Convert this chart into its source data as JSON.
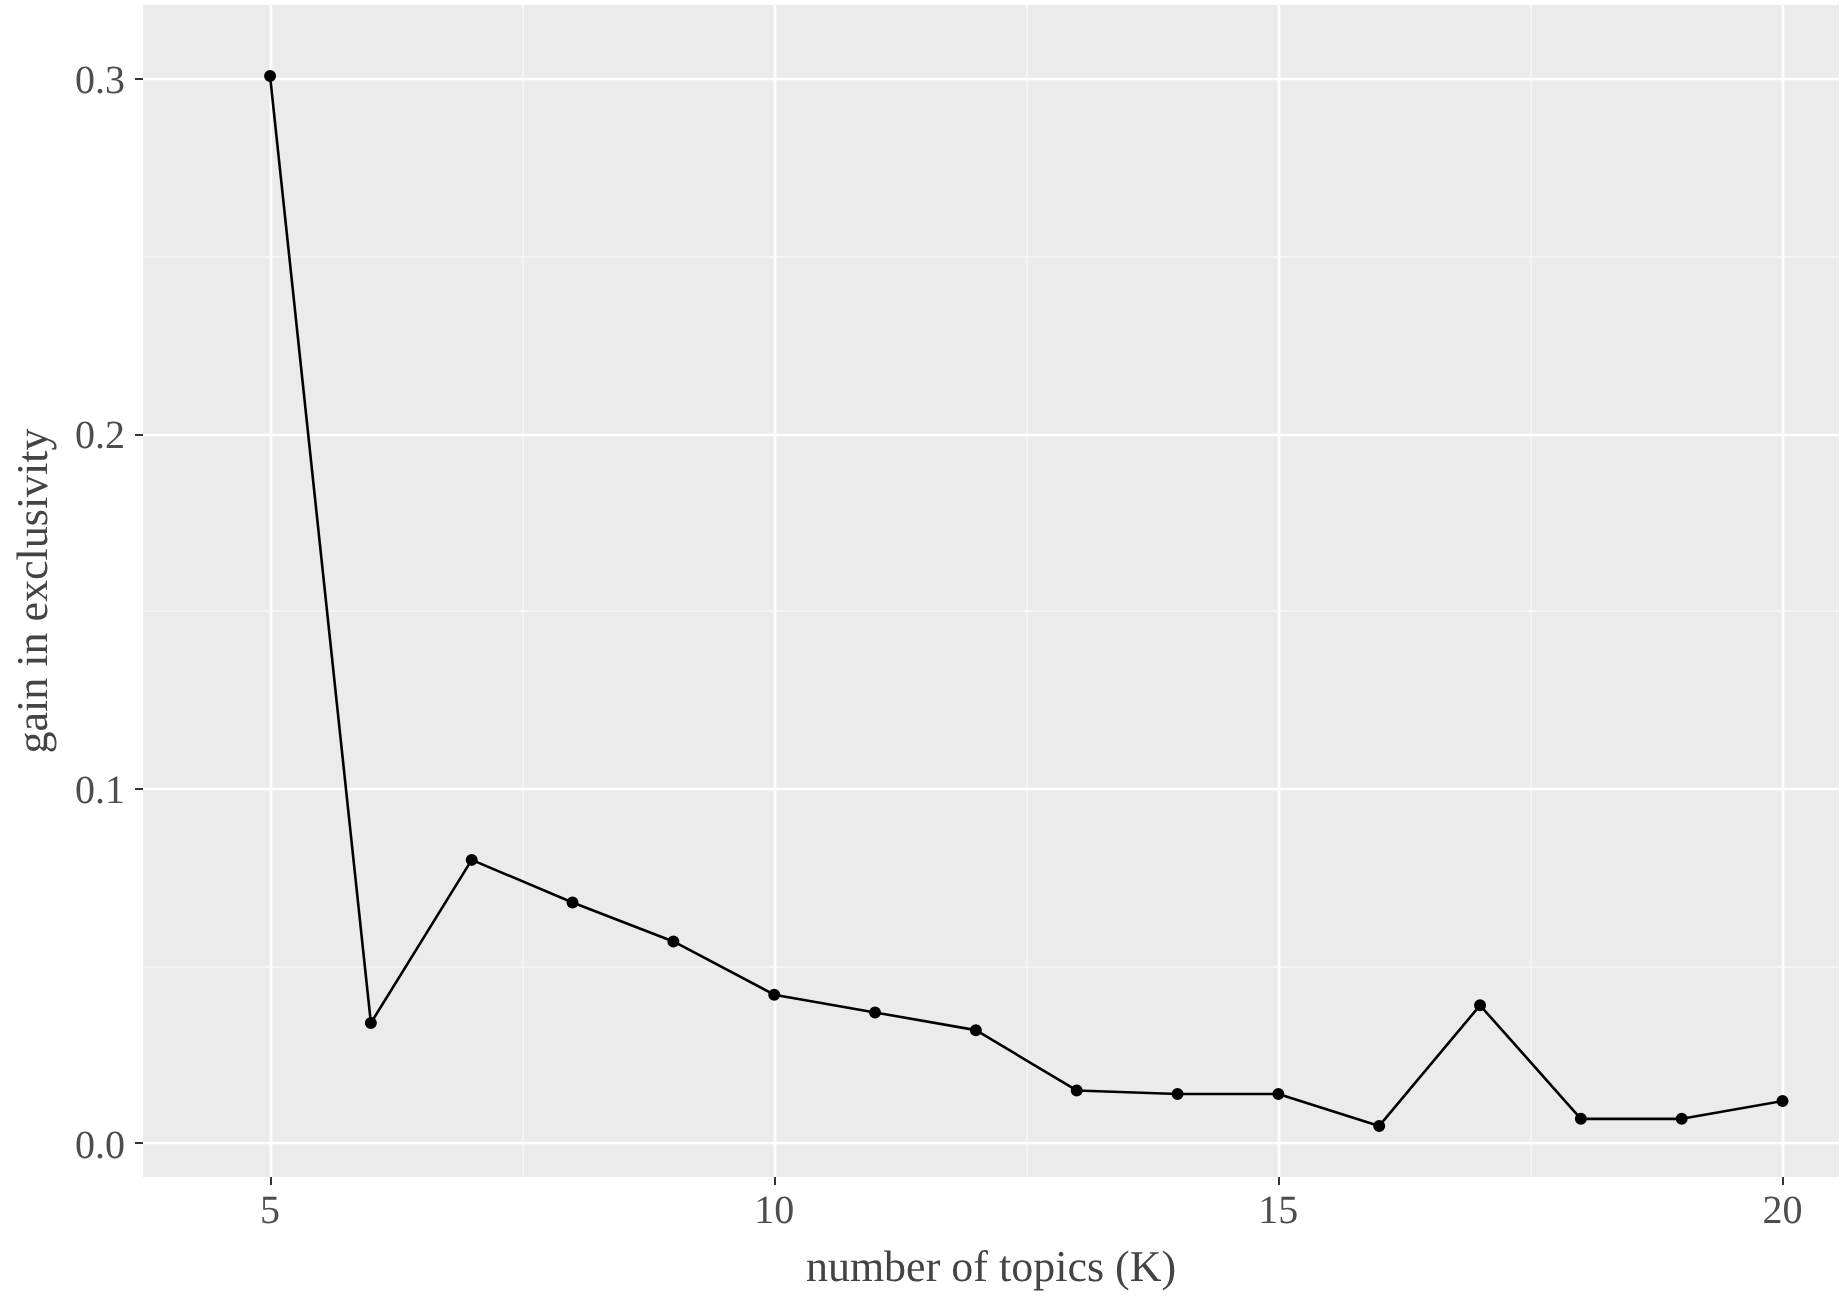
{
  "chart_data": {
    "type": "line",
    "xlabel": "number of topics (K)",
    "ylabel": "gain in exclusivity",
    "x": [
      5,
      6,
      7,
      8,
      9,
      10,
      11,
      12,
      13,
      14,
      15,
      16,
      17,
      18,
      19,
      20
    ],
    "series": [
      {
        "color": "#000000",
        "values": [
          0.301,
          0.034,
          0.08,
          0.068,
          0.057,
          0.042,
          0.037,
          0.032,
          0.015,
          0.014,
          0.014,
          0.005,
          0.039,
          0.007,
          0.007,
          0.012
        ]
      }
    ],
    "xlim": [
      3.74,
      20.56
    ],
    "ylim": [
      -0.0094,
      0.321
    ],
    "xticks": [
      5,
      10,
      15,
      20
    ],
    "yticks": [
      {
        "value": 0,
        "label": "0.0"
      },
      {
        "value": 0.1,
        "label": "0.1"
      },
      {
        "value": 0.2,
        "label": "0.2"
      },
      {
        "value": 0.3,
        "label": "0.3"
      }
    ],
    "grid": true,
    "marker": "circle",
    "line_style": "solid"
  }
}
